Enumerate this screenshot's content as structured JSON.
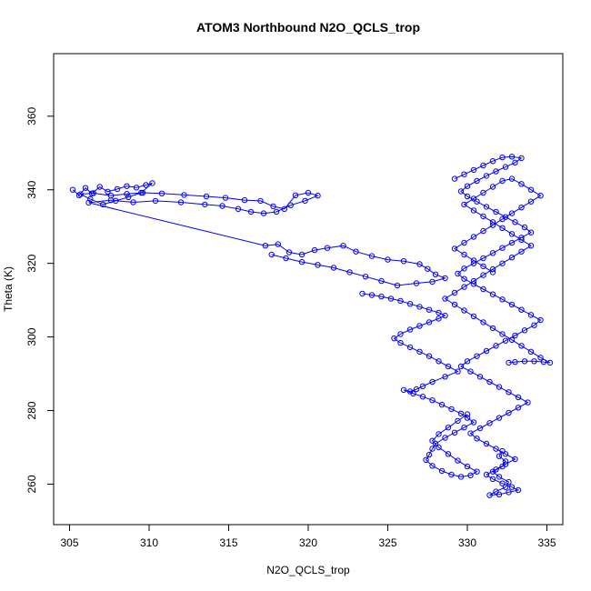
{
  "chart_data": {
    "type": "scatter",
    "title": "ATOM3 Northbound N2O_QCLS_trop",
    "xlabel": "N2O_QCLS_trop",
    "ylabel": "Theta (K)",
    "xlim": [
      304,
      336
    ],
    "ylim": [
      249,
      377
    ],
    "xticks": [
      305,
      310,
      315,
      320,
      325,
      330,
      335
    ],
    "yticks": [
      260,
      280,
      300,
      320,
      340,
      360
    ],
    "marker": "open-circle",
    "lines_connecting_points": true,
    "grid": false,
    "legend": "none",
    "color": "#0000ff",
    "series": [
      {
        "x": [
          305.2,
          305.6,
          306.0,
          306.4,
          306.9,
          307.4,
          308.0,
          308.6,
          309.2,
          309.8,
          310.2,
          309.5,
          308.7,
          307.9,
          307.1,
          306.3,
          305.7,
          306.5,
          307.6,
          308.6,
          309.6,
          310.8,
          312.2,
          313.6,
          314.8,
          316.0,
          317.0,
          317.8,
          318.5,
          319.2,
          320.0,
          320.6,
          319.8,
          318.9,
          318.0,
          317.2,
          316.4,
          315.6,
          314.6,
          313.5,
          312.0,
          310.4,
          309.0,
          307.6,
          306.2,
          317.3,
          318.1,
          318.8,
          319.6,
          320.4,
          321.2,
          322.2,
          323.0,
          324.0,
          325.0,
          326.0,
          327.0,
          327.5,
          328.0,
          328.6,
          327.8,
          326.8,
          325.6,
          324.6,
          323.6,
          322.6,
          321.6,
          320.6,
          319.6,
          318.6,
          317.7
        ],
        "y": [
          340.0,
          338.5,
          340.5,
          339.0,
          340.8,
          339.5,
          340.2,
          341.0,
          340.6,
          341.3,
          341.8,
          339.2,
          338.0,
          337.0,
          336.0,
          337.5,
          338.8,
          339.1,
          338.4,
          338.9,
          339.2,
          339.0,
          338.6,
          338.2,
          337.8,
          337.2,
          337.0,
          335.5,
          334.8,
          338.5,
          339.2,
          338.4,
          337.0,
          335.8,
          334.0,
          333.6,
          334.0,
          334.8,
          335.6,
          336.0,
          336.6,
          337.0,
          336.6,
          337.2,
          336.5,
          324.8,
          325.2,
          323.0,
          322.4,
          323.6,
          324.2,
          324.8,
          323.2,
          322.0,
          321.0,
          320.6,
          319.8,
          318.5,
          317.0,
          316.0,
          315.0,
          314.6,
          314.0,
          315.2,
          316.4,
          317.6,
          318.8,
          319.6,
          320.4,
          321.4,
          322.4
        ]
      },
      {
        "x": [
          323.4,
          324.0,
          324.6,
          325.2,
          325.8,
          326.4,
          327.0,
          327.6,
          328.2,
          328.6,
          328.2,
          327.6,
          327.0,
          326.4,
          325.8,
          325.4,
          325.8,
          326.4,
          327.0,
          327.6,
          328.2,
          328.8,
          329.4,
          328.6,
          327.8,
          327.2,
          326.8,
          326.4,
          326.0,
          326.6,
          327.2,
          327.8,
          328.4,
          329.0,
          329.6,
          330.0,
          330.4,
          329.8,
          329.2,
          328.6,
          328.0,
          327.8,
          327.6,
          327.4,
          327.8,
          328.4,
          329.0,
          329.6,
          330.2,
          330.6,
          330.0,
          329.4,
          328.8,
          328.2,
          327.8,
          328.2,
          328.8,
          329.4,
          330.0
        ],
        "y": [
          311.8,
          311.4,
          311.0,
          310.4,
          309.8,
          309.0,
          308.2,
          307.4,
          306.6,
          305.8,
          305.0,
          304.0,
          303.0,
          302.0,
          300.8,
          299.6,
          298.4,
          297.2,
          296.0,
          294.8,
          293.4,
          292.0,
          290.6,
          289.2,
          287.8,
          286.6,
          285.8,
          285.2,
          285.6,
          284.6,
          283.8,
          282.8,
          281.6,
          280.4,
          279.2,
          278.0,
          276.8,
          275.4,
          274.0,
          272.6,
          271.0,
          269.6,
          268.0,
          266.6,
          265.0,
          263.6,
          262.6,
          262.0,
          262.4,
          263.4,
          264.8,
          266.4,
          268.2,
          270.0,
          271.8,
          273.6,
          275.4,
          277.2,
          279.0
        ]
      },
      {
        "x": [
          329.2,
          329.8,
          330.4,
          331.0,
          331.6,
          332.2,
          332.8,
          333.4,
          333.0,
          332.4,
          331.8,
          331.2,
          330.6,
          330.0,
          329.6,
          330.0,
          330.6,
          331.2,
          331.8,
          332.4,
          333.0,
          333.6,
          334.0,
          333.4,
          332.8,
          332.2,
          331.6,
          331.0,
          330.4,
          329.8,
          329.4,
          329.8,
          330.4,
          331.0,
          331.6,
          332.2,
          332.8,
          333.4,
          334.0,
          334.6,
          334.2,
          333.6,
          333.0,
          332.4,
          331.8,
          331.2,
          330.6,
          330.0,
          329.6,
          330.2,
          330.8,
          331.4,
          332.0,
          332.6,
          333.2,
          333.8,
          333.2,
          332.6,
          332.0,
          331.4,
          330.8,
          330.2,
          330.6,
          331.2,
          331.8,
          332.4,
          333.0,
          332.4,
          331.8,
          331.2,
          331.6,
          332.2,
          332.8,
          333.2,
          332.6,
          332.0,
          331.4,
          331.8,
          332.4,
          332.6,
          332.0,
          331.6,
          332.2,
          332.4,
          332.0,
          332.2
        ],
        "y": [
          343.0,
          344.2,
          345.4,
          346.6,
          347.8,
          348.8,
          349.0,
          348.6,
          347.4,
          346.2,
          345.0,
          343.8,
          342.4,
          341.0,
          339.6,
          338.2,
          336.8,
          335.4,
          334.0,
          332.6,
          331.2,
          329.8,
          328.4,
          327.0,
          325.6,
          324.2,
          322.8,
          321.4,
          320.0,
          318.6,
          317.2,
          315.8,
          314.4,
          313.0,
          311.6,
          310.2,
          308.8,
          307.4,
          306.0,
          304.6,
          303.2,
          301.8,
          300.4,
          299.0,
          297.6,
          296.2,
          294.8,
          293.4,
          292.0,
          290.6,
          289.2,
          287.8,
          286.4,
          285.0,
          283.6,
          282.2,
          280.8,
          279.4,
          278.0,
          276.6,
          275.2,
          273.8,
          272.4,
          271.0,
          269.6,
          268.2,
          266.8,
          265.4,
          264.0,
          262.6,
          261.4,
          260.2,
          259.2,
          258.4,
          257.8,
          257.2,
          257.0,
          258.0,
          259.2,
          260.6,
          262.0,
          263.4,
          264.8,
          266.2,
          267.6,
          269.0
        ]
      },
      {
        "x": [
          332.6,
          333.0,
          333.6,
          334.2,
          334.8,
          335.2,
          334.6,
          334.0,
          333.4,
          332.8,
          332.2,
          331.6,
          331.0,
          330.4,
          329.8,
          329.2,
          328.6,
          329.2,
          329.8,
          330.4,
          331.0,
          331.6,
          332.2,
          332.8,
          333.4,
          334.0,
          333.4,
          332.8,
          332.2,
          331.6,
          331.0,
          330.4,
          329.8,
          330.4,
          331.0,
          331.6,
          332.2,
          332.8,
          333.4,
          334.0,
          334.6,
          334.0,
          333.4,
          332.8,
          332.2,
          331.6,
          331.0,
          330.4,
          329.8,
          329.2,
          329.8,
          330.4,
          331.0,
          331.6
        ],
        "y": [
          293.0,
          293.2,
          293.4,
          293.4,
          293.2,
          293.0,
          294.4,
          296.0,
          297.6,
          299.2,
          300.8,
          302.4,
          304.0,
          305.6,
          307.2,
          308.8,
          310.4,
          312.0,
          313.6,
          315.2,
          316.8,
          318.4,
          320.0,
          321.6,
          323.2,
          324.8,
          326.4,
          328.0,
          329.6,
          331.2,
          332.8,
          334.4,
          336.0,
          337.6,
          339.2,
          340.8,
          342.4,
          343.0,
          341.6,
          340.0,
          338.4,
          336.8,
          335.2,
          333.6,
          332.0,
          330.4,
          328.8,
          327.2,
          325.6,
          324.0,
          322.4,
          320.8,
          319.2,
          317.6
        ]
      }
    ]
  }
}
